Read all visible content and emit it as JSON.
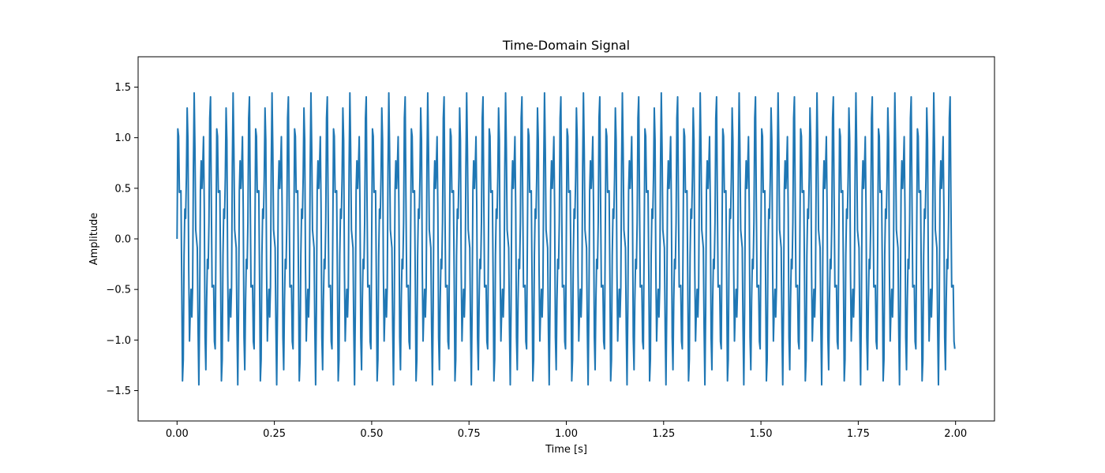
{
  "chart_data": {
    "type": "line",
    "title": "Time-Domain Signal",
    "xlabel": "Time [s]",
    "ylabel": "Amplitude",
    "xlim": [
      -0.1,
      2.1
    ],
    "ylim": [
      -1.8,
      1.8
    ],
    "xticks": [
      0.0,
      0.25,
      0.5,
      0.75,
      1.0,
      1.25,
      1.5,
      1.75,
      2.0
    ],
    "xtick_labels": [
      "0.00",
      "0.25",
      "0.50",
      "0.75",
      "1.00",
      "1.25",
      "1.50",
      "1.75",
      "2.00"
    ],
    "yticks": [
      -1.5,
      -1.0,
      -0.5,
      0.0,
      0.5,
      1.0,
      1.5
    ],
    "ytick_labels": [
      "−1.5",
      "−1.0",
      "−0.5",
      "0.0",
      "0.5",
      "1.0",
      "1.5"
    ],
    "grid": false,
    "legend": false,
    "series": [
      {
        "color": "#1f77b4",
        "x_range": [
          0,
          2
        ],
        "sample_rate": 500,
        "components": [
          {
            "frequency": 50,
            "amplitude": 1.0
          },
          {
            "frequency": 120,
            "amplitude": 0.5
          }
        ]
      }
    ]
  }
}
